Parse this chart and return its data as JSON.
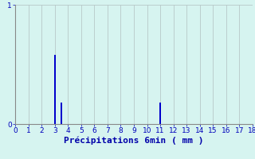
{
  "x_values": [
    3,
    3.5,
    11
  ],
  "y_values": [
    0.58,
    0.18,
    0.18
  ],
  "bar_width": 0.12,
  "bar_color": "#0000cc",
  "xlim": [
    0,
    18
  ],
  "ylim": [
    0,
    1.0
  ],
  "xticks": [
    0,
    1,
    2,
    3,
    4,
    5,
    6,
    7,
    8,
    9,
    10,
    11,
    12,
    13,
    14,
    15,
    16,
    17,
    18
  ],
  "yticks": [
    0,
    1
  ],
  "xlabel": "Précipitations 6min ( mm )",
  "xlabel_fontsize": 8,
  "tick_fontsize": 6.5,
  "background_color": "#d6f4f0",
  "grid_color": "#b8c8c8",
  "axis_color": "#888888",
  "label_color": "#0000aa",
  "tick_color": "#0000bb"
}
